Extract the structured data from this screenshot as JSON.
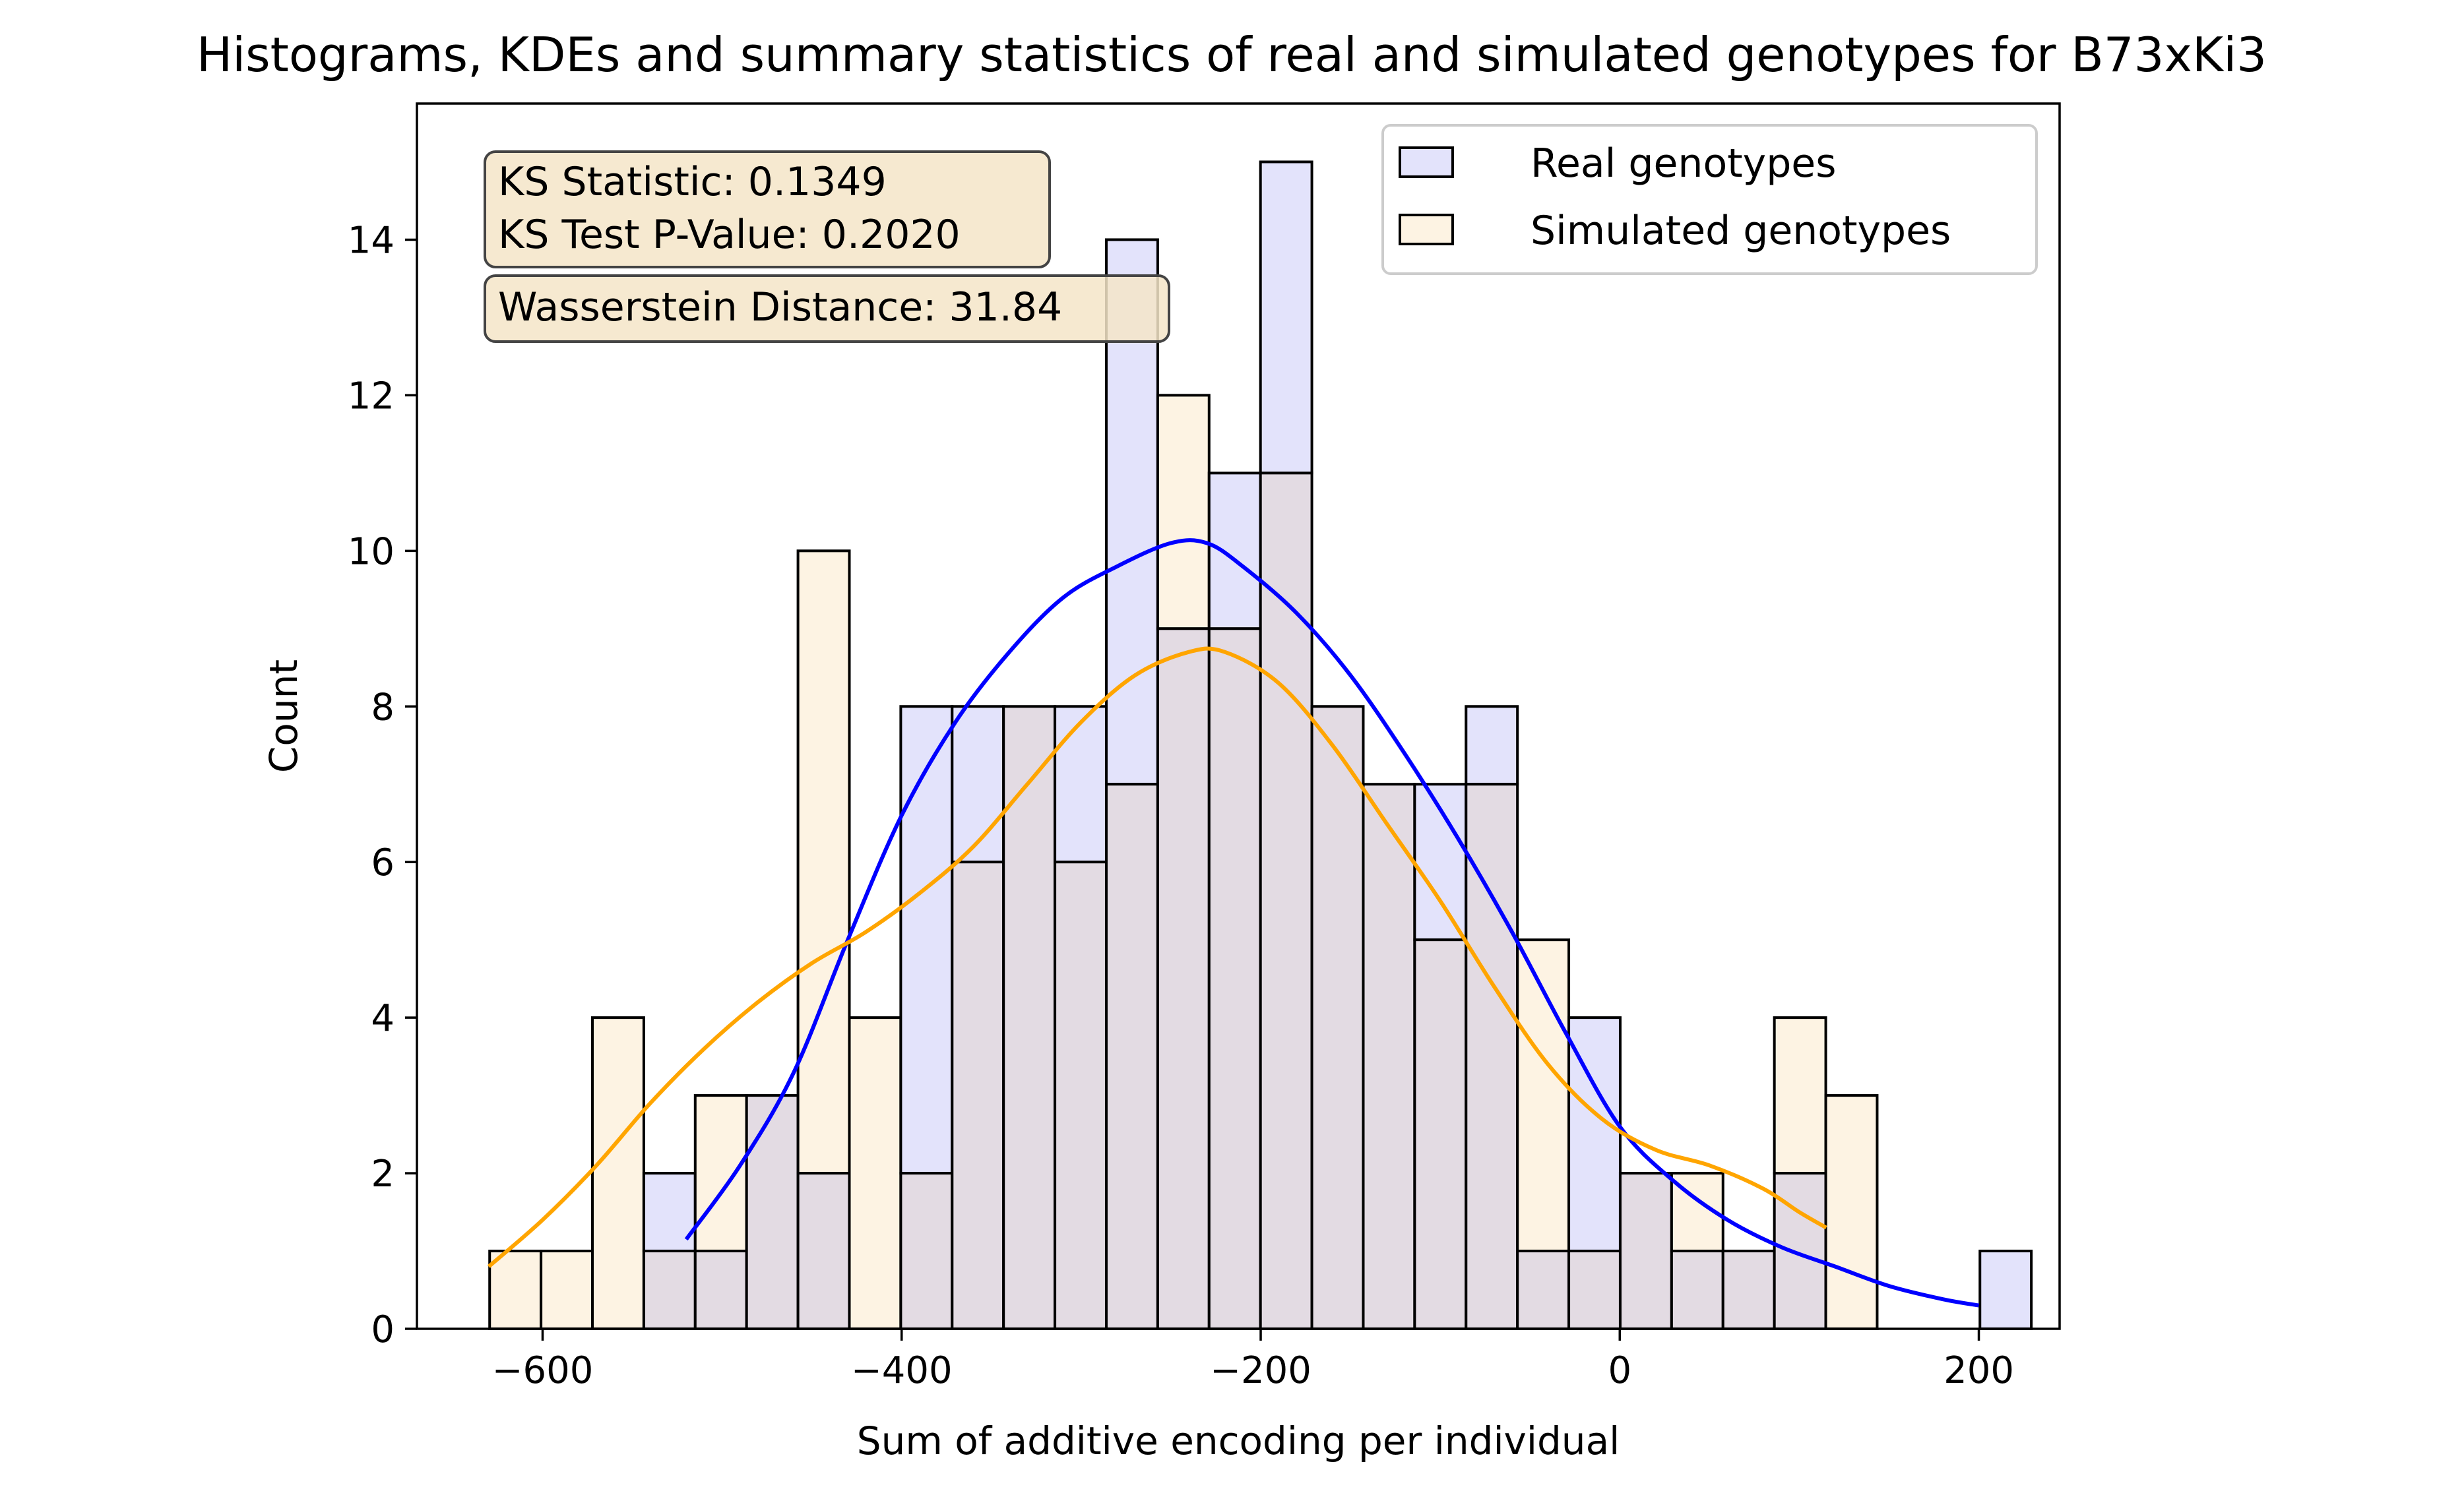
{
  "chart_data": {
    "type": "bar",
    "title": "Histograms, KDEs and summary statistics of real and simulated genotypes for B73xKi3",
    "xlabel": "Sum of additive encoding per individual",
    "ylabel": "Count",
    "xlim": [
      -670,
      245
    ],
    "ylim": [
      0,
      15.75
    ],
    "xticks": [
      -600,
      -400,
      -200,
      0,
      200
    ],
    "xtick_labels": [
      "−600",
      "−400",
      "−200",
      "0",
      "200"
    ],
    "yticks": [
      0,
      2,
      4,
      6,
      8,
      10,
      12,
      14
    ],
    "ytick_labels": [
      "0",
      "2",
      "4",
      "6",
      "8",
      "10",
      "12",
      "14"
    ],
    "legend_position": "top-right",
    "bin_start": -629.5,
    "bin_width": 28.625,
    "series": [
      {
        "name": "Real genotypes",
        "fill": "#e3e3fb",
        "line_color": "#0000ff",
        "values": [
          0,
          0,
          0,
          2,
          1,
          3,
          2,
          0,
          8,
          8,
          8,
          8,
          14,
          9,
          11,
          15,
          8,
          7,
          7,
          8,
          1,
          4,
          2,
          1,
          1,
          2,
          0,
          0,
          0,
          1
        ],
        "kde": [
          [
            -520,
            1.15
          ],
          [
            -490,
            2.1
          ],
          [
            -460,
            3.3
          ],
          [
            -430,
            5.0
          ],
          [
            -400,
            6.6
          ],
          [
            -370,
            7.8
          ],
          [
            -340,
            8.7
          ],
          [
            -310,
            9.4
          ],
          [
            -280,
            9.8
          ],
          [
            -250,
            10.1
          ],
          [
            -230,
            10.1
          ],
          [
            -210,
            9.8
          ],
          [
            -180,
            9.2
          ],
          [
            -150,
            8.4
          ],
          [
            -120,
            7.4
          ],
          [
            -90,
            6.3
          ],
          [
            -60,
            5.1
          ],
          [
            -30,
            3.8
          ],
          [
            0,
            2.6
          ],
          [
            30,
            1.9
          ],
          [
            60,
            1.4
          ],
          [
            90,
            1.05
          ],
          [
            120,
            0.8
          ],
          [
            150,
            0.55
          ],
          [
            180,
            0.38
          ],
          [
            200,
            0.3
          ]
        ]
      },
      {
        "name": "Simulated genotypes",
        "fill": "#fdf3e3",
        "line_color": "#ffa500",
        "values": [
          1,
          1,
          4,
          1,
          3,
          3,
          10,
          4,
          2,
          6,
          8,
          6,
          7,
          12,
          9,
          11,
          8,
          7,
          5,
          7,
          5,
          1,
          2,
          2,
          1,
          4,
          3,
          0,
          0,
          0
        ],
        "kde": [
          [
            -630,
            0.8
          ],
          [
            -600,
            1.4
          ],
          [
            -570,
            2.1
          ],
          [
            -540,
            2.9
          ],
          [
            -510,
            3.6
          ],
          [
            -480,
            4.2
          ],
          [
            -450,
            4.7
          ],
          [
            -420,
            5.1
          ],
          [
            -390,
            5.6
          ],
          [
            -360,
            6.2
          ],
          [
            -330,
            7.0
          ],
          [
            -300,
            7.8
          ],
          [
            -270,
            8.4
          ],
          [
            -240,
            8.7
          ],
          [
            -220,
            8.7
          ],
          [
            -190,
            8.3
          ],
          [
            -160,
            7.5
          ],
          [
            -130,
            6.5
          ],
          [
            -100,
            5.5
          ],
          [
            -70,
            4.4
          ],
          [
            -40,
            3.4
          ],
          [
            -10,
            2.7
          ],
          [
            20,
            2.3
          ],
          [
            50,
            2.1
          ],
          [
            80,
            1.8
          ],
          [
            100,
            1.5
          ],
          [
            115,
            1.3
          ]
        ]
      }
    ],
    "annotations": {
      "ks_statistic": "KS Statistic: 0.1349",
      "ks_pvalue": "KS Test P-Value: 0.2020",
      "wasserstein": "Wasserstein Distance: 31.84"
    },
    "colors": {
      "overlap": "#e3dbe3",
      "annotation_box": "#f5e5c8"
    }
  }
}
